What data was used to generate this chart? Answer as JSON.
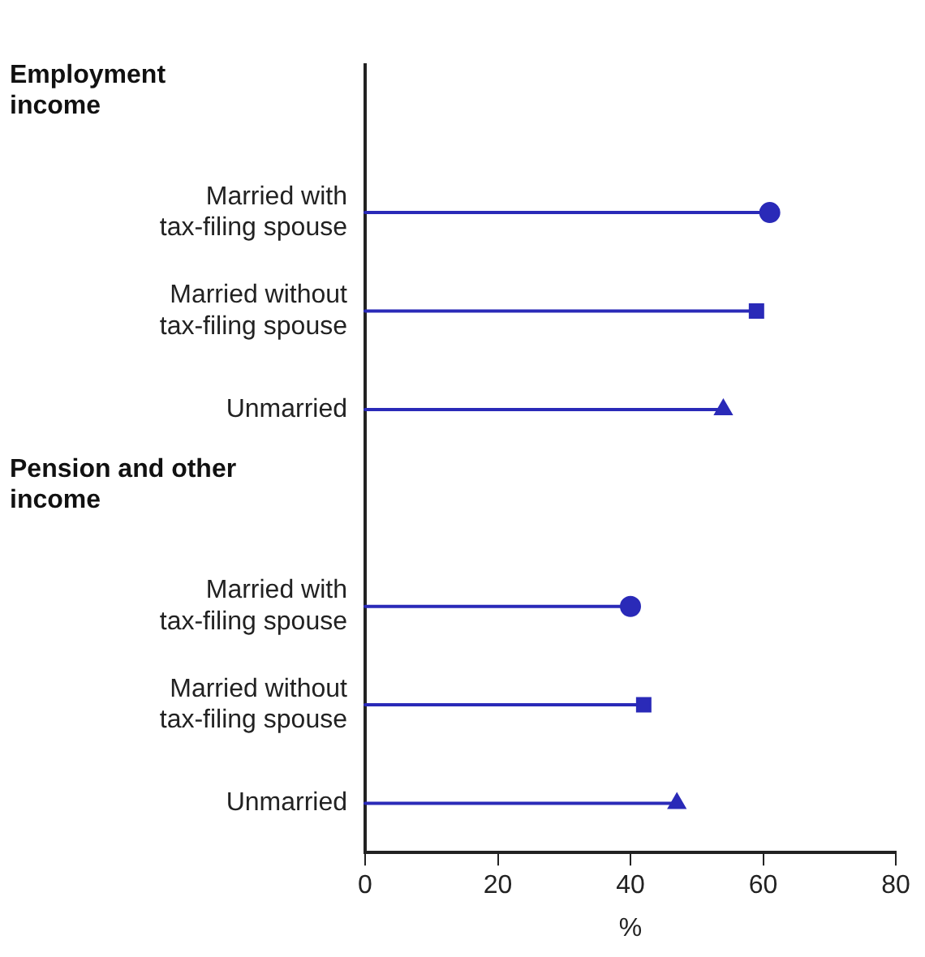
{
  "chart_data": {
    "type": "lollipop",
    "orientation": "horizontal",
    "xlabel": "%",
    "annotations": [
      "Employment income",
      "Pension and other income"
    ],
    "categories": [
      null,
      "Married with tax-filing spouse",
      "Married without tax-filing spouse",
      "Unmarried",
      null,
      "Married with tax-filing spouse",
      "Married without tax-filing spouse",
      "Unmarried"
    ],
    "series": [
      {
        "color": "#2a2ab8",
        "marker": "circle",
        "values": [
          null,
          61,
          null,
          null,
          null,
          40,
          null,
          null
        ]
      },
      {
        "color": "#2a2ab8",
        "marker": "square",
        "values": [
          null,
          null,
          59,
          null,
          null,
          null,
          42,
          null
        ]
      },
      {
        "color": "#2a2ab8",
        "marker": "triangle",
        "values": [
          null,
          null,
          null,
          54,
          null,
          null,
          null,
          47
        ]
      }
    ],
    "xlim": [
      0,
      80
    ],
    "xticks": [
      0,
      20,
      40,
      60,
      80
    ],
    "grid": false,
    "legend": false
  }
}
